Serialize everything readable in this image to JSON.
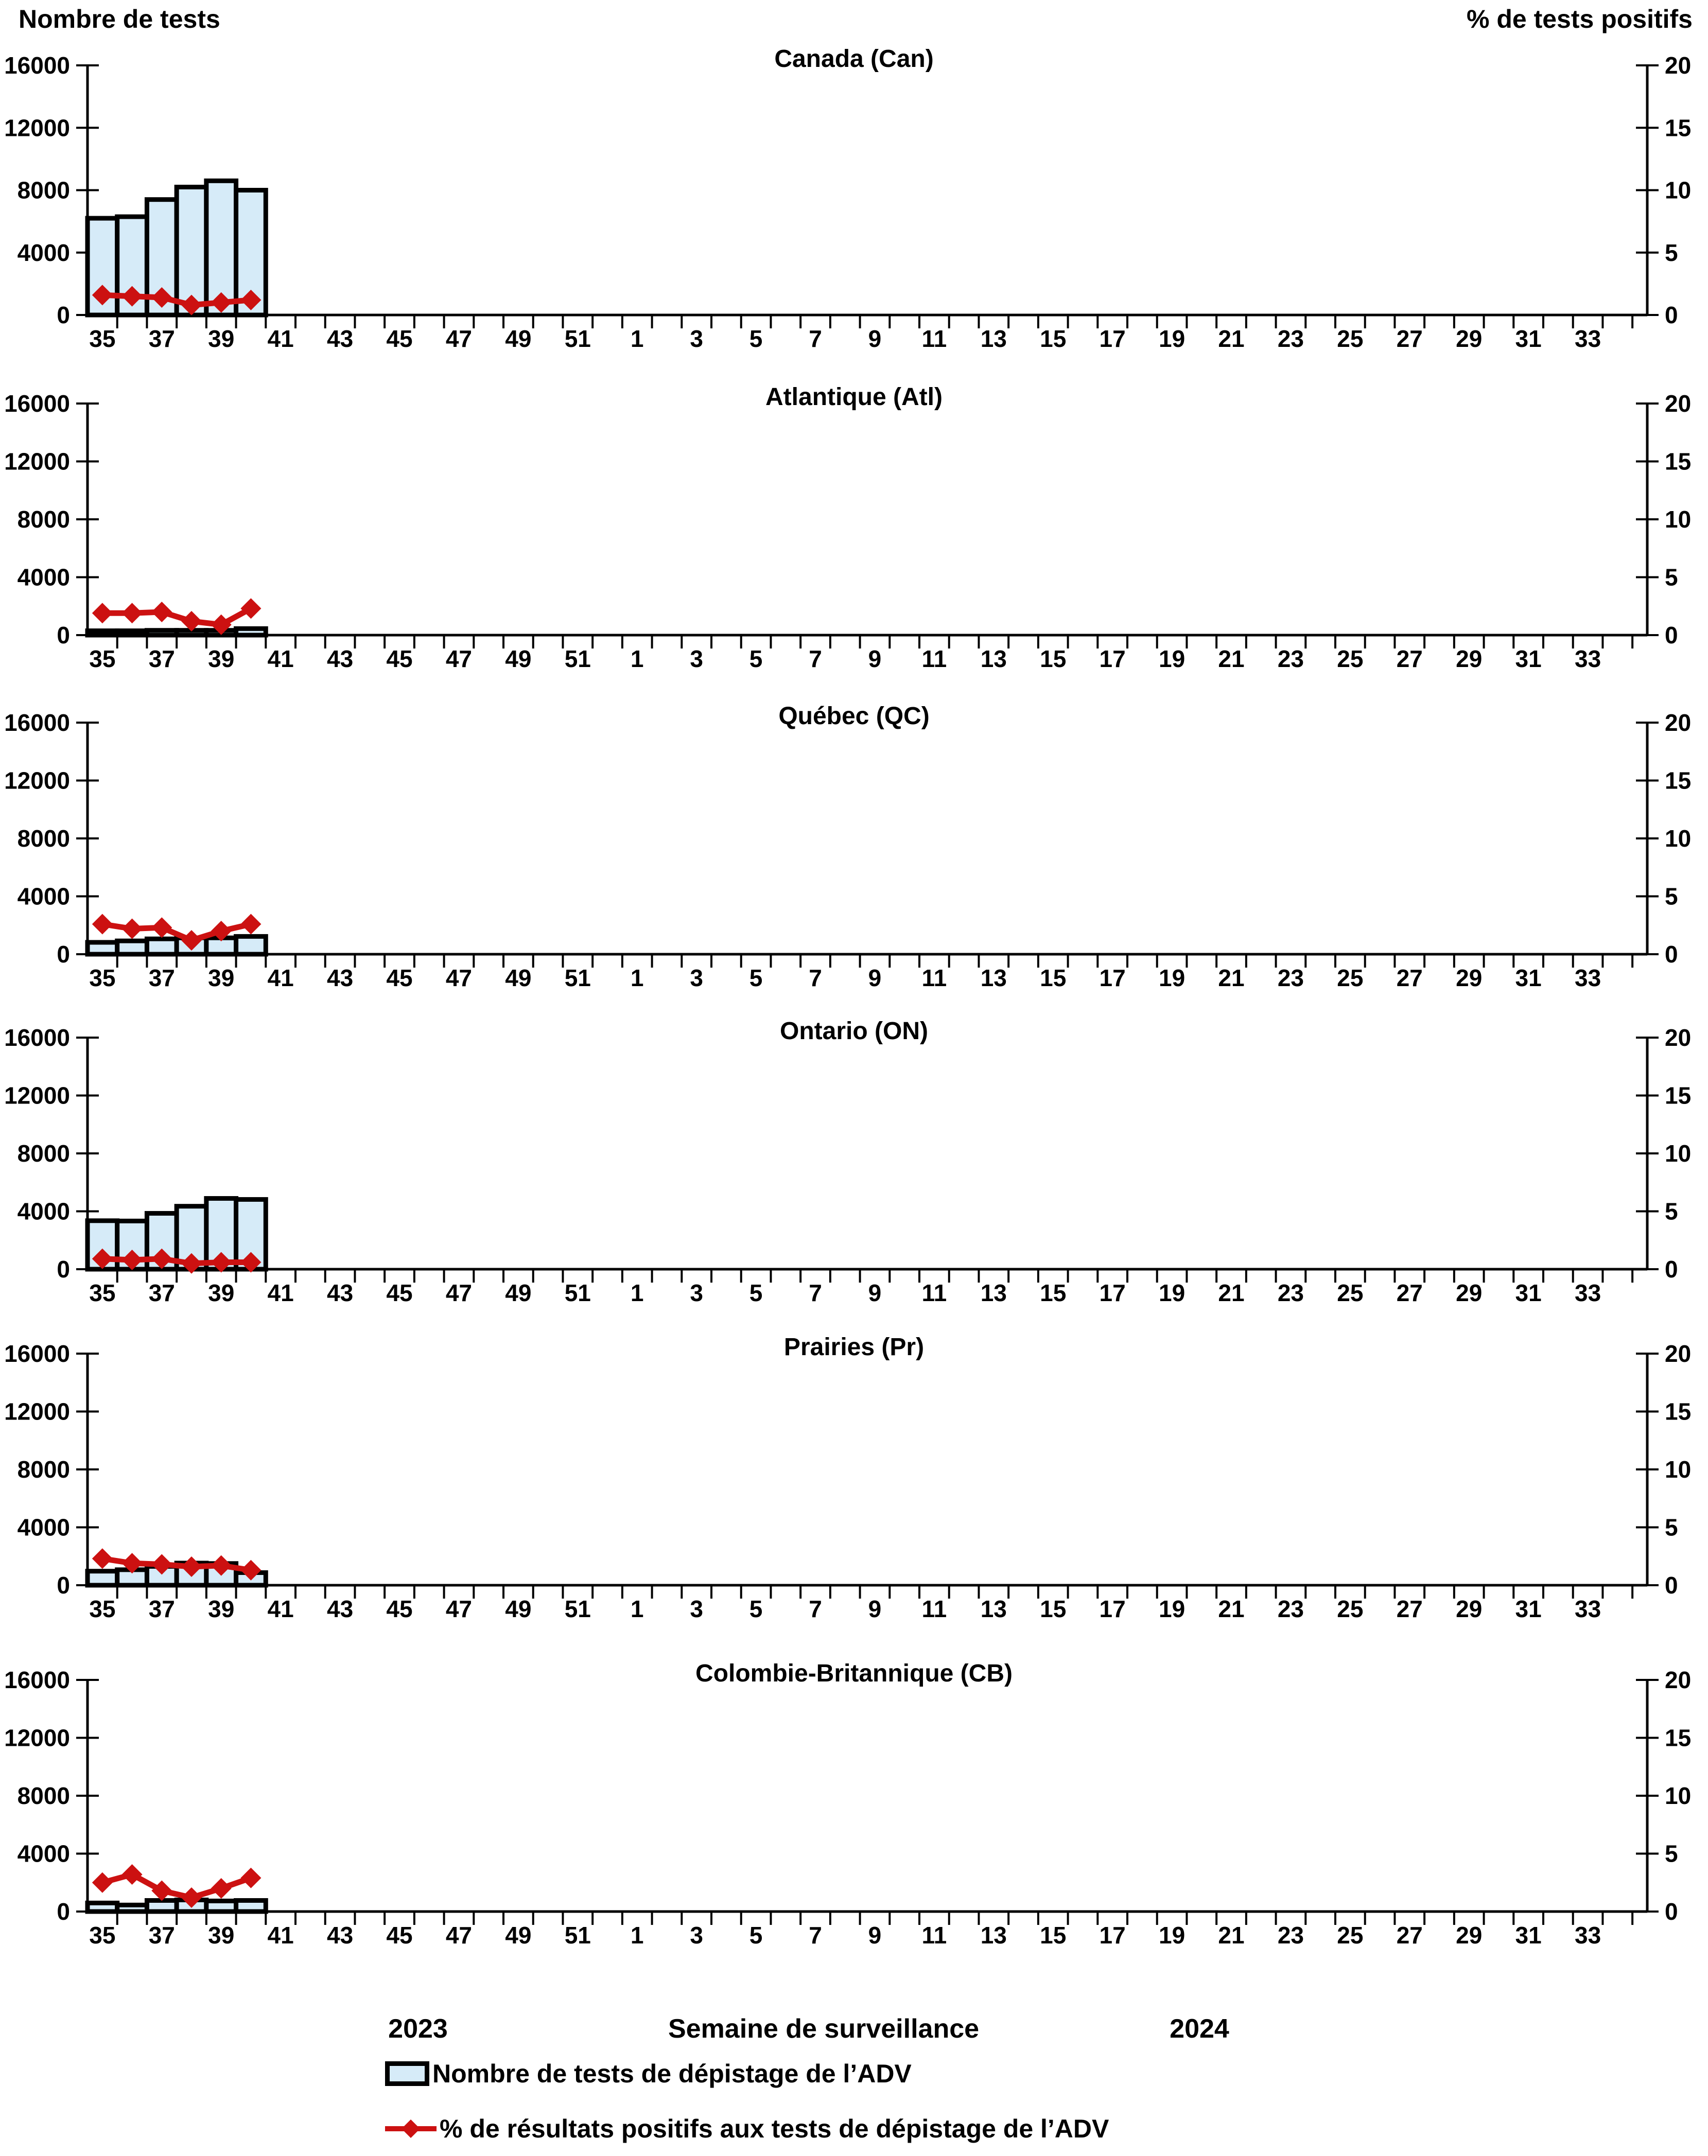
{
  "header": {
    "left_axis_title": "Nombre de tests",
    "right_axis_title": "% de tests positifs"
  },
  "footer": {
    "year_left": "2023",
    "x_axis_title": "Semaine de surveillance",
    "year_right": "2024"
  },
  "legend": {
    "items": [
      {
        "swatch": "bar-swatch",
        "label": "Nombre de tests de dépistage de l’ADV"
      },
      {
        "swatch": "line-swatch",
        "label": "% de résultats positifs aux tests de dépistage de l’ADV"
      }
    ]
  },
  "colors": {
    "bar_fill": "#D6EBF8",
    "bar_stroke": "#000000",
    "line": "#CC1111",
    "axis": "#000000"
  },
  "axes": {
    "left_label": "Nombre de tests",
    "right_label": "% de tests positifs",
    "left_ticks": [
      0,
      4000,
      8000,
      12000,
      16000
    ],
    "left_max": 16000,
    "right_ticks": [
      0,
      5,
      10,
      15,
      20
    ],
    "right_max": 20,
    "week_slots": 52,
    "x_tick_labels": [
      "35",
      "37",
      "39",
      "41",
      "43",
      "45",
      "47",
      "49",
      "51",
      "1",
      "3",
      "5",
      "7",
      "9",
      "11",
      "13",
      "15",
      "17",
      "19",
      "21",
      "23",
      "25",
      "27",
      "29",
      "31",
      "33"
    ]
  },
  "chart_data": [
    {
      "type": "bar+line",
      "title": "Canada (Can)",
      "categories": [
        35,
        36,
        37,
        38,
        39,
        40
      ],
      "series": [
        {
          "name": "Nombre de tests de dépistage de l’ADV",
          "axis": "left",
          "values": [
            6200,
            6300,
            7400,
            8200,
            8600,
            8000
          ]
        },
        {
          "name": "% de résultats positifs aux tests de dépistage de l’ADV",
          "axis": "right",
          "values": [
            1.6,
            1.5,
            1.4,
            0.8,
            1.0,
            1.2
          ]
        }
      ],
      "ylim_left": [
        0,
        16000
      ],
      "ylim_right": [
        0,
        20
      ]
    },
    {
      "type": "bar+line",
      "title": "Atlantique (Atl)",
      "categories": [
        35,
        36,
        37,
        38,
        39,
        40
      ],
      "series": [
        {
          "name": "Nombre de tests de dépistage de l’ADV",
          "axis": "left",
          "values": [
            300,
            300,
            330,
            330,
            330,
            450
          ]
        },
        {
          "name": "% de résultats positifs aux tests de dépistage de l’ADV",
          "axis": "right",
          "values": [
            1.9,
            1.9,
            2.0,
            1.2,
            0.9,
            2.3
          ]
        }
      ],
      "ylim_left": [
        0,
        16000
      ],
      "ylim_right": [
        0,
        20
      ]
    },
    {
      "type": "bar+line",
      "title": "Québec (QC)",
      "categories": [
        35,
        36,
        37,
        38,
        39,
        40
      ],
      "series": [
        {
          "name": "Nombre de tests de dépistage de l’ADV",
          "axis": "left",
          "values": [
            820,
            920,
            1060,
            1130,
            1130,
            1230
          ]
        },
        {
          "name": "% de résultats positifs aux tests de dépistage de l’ADV",
          "axis": "right",
          "values": [
            2.6,
            2.2,
            2.3,
            1.2,
            2.0,
            2.6
          ]
        }
      ],
      "ylim_left": [
        0,
        16000
      ],
      "ylim_right": [
        0,
        20
      ]
    },
    {
      "type": "bar+line",
      "title": "Ontario (ON)",
      "categories": [
        35,
        36,
        37,
        38,
        39,
        40
      ],
      "series": [
        {
          "name": "Nombre de tests de dépistage de l’ADV",
          "axis": "left",
          "values": [
            3350,
            3330,
            3860,
            4350,
            4890,
            4820
          ]
        },
        {
          "name": "% de résultats positifs aux tests de dépistage de l’ADV",
          "axis": "right",
          "values": [
            0.9,
            0.8,
            0.9,
            0.5,
            0.6,
            0.6
          ]
        }
      ],
      "ylim_left": [
        0,
        16000
      ],
      "ylim_right": [
        0,
        20
      ]
    },
    {
      "type": "bar+line",
      "title": "Prairies (Pr)",
      "categories": [
        35,
        36,
        37,
        38,
        39,
        40
      ],
      "series": [
        {
          "name": "Nombre de tests de dépistage de l’ADV",
          "axis": "left",
          "values": [
            970,
            1070,
            1300,
            1530,
            1500,
            870
          ]
        },
        {
          "name": "% de résultats positifs aux tests de dépistage de l’ADV",
          "axis": "right",
          "values": [
            2.3,
            1.9,
            1.8,
            1.6,
            1.7,
            1.3
          ]
        }
      ],
      "ylim_left": [
        0,
        16000
      ],
      "ylim_right": [
        0,
        20
      ]
    },
    {
      "type": "bar+line",
      "title": "Colombie-Britannique (CB)",
      "categories": [
        35,
        36,
        37,
        38,
        39,
        40
      ],
      "series": [
        {
          "name": "Nombre de tests de dépistage de l’ADV",
          "axis": "left",
          "values": [
            590,
            450,
            765,
            800,
            730,
            765
          ]
        },
        {
          "name": "% de résultats positifs aux tests de dépistage de l’ADV",
          "axis": "right",
          "values": [
            2.5,
            3.2,
            1.8,
            1.2,
            2.0,
            2.9
          ]
        }
      ],
      "ylim_left": [
        0,
        16000
      ],
      "ylim_right": [
        0,
        20
      ]
    }
  ]
}
